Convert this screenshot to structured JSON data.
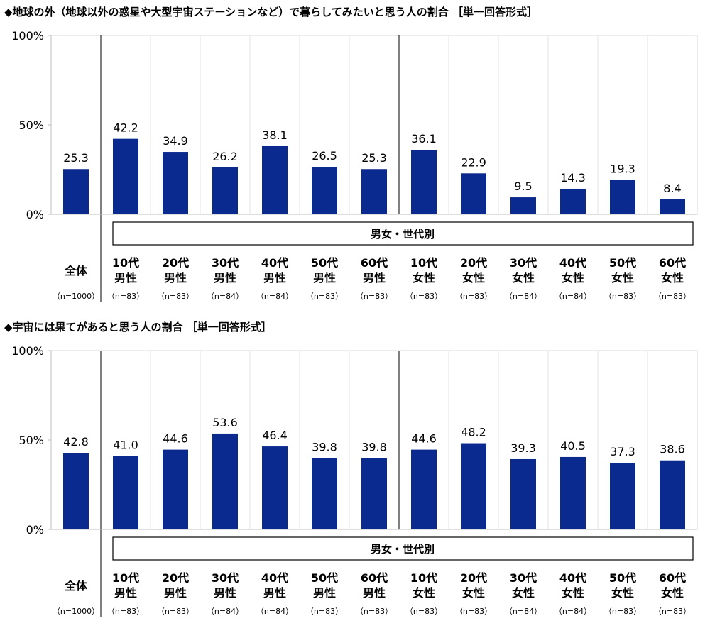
{
  "chart_data": [
    {
      "type": "bar",
      "title": "◆地球の外（地球以外の惑星や大型宇宙ステーションなど）で暮らしてみたいと思う人の割合 ［単一回答形式］",
      "group_label": "男女・世代別",
      "categories": [
        {
          "line1": "全体",
          "line2": "",
          "n": "（n=1000）"
        },
        {
          "line1": "10代",
          "line2": "男性",
          "n": "（n=83）"
        },
        {
          "line1": "20代",
          "line2": "男性",
          "n": "（n=83）"
        },
        {
          "line1": "30代",
          "line2": "男性",
          "n": "（n=84）"
        },
        {
          "line1": "40代",
          "line2": "男性",
          "n": "（n=84）"
        },
        {
          "line1": "50代",
          "line2": "男性",
          "n": "（n=83）"
        },
        {
          "line1": "60代",
          "line2": "男性",
          "n": "（n=83）"
        },
        {
          "line1": "10代",
          "line2": "女性",
          "n": "（n=83）"
        },
        {
          "line1": "20代",
          "line2": "女性",
          "n": "（n=83）"
        },
        {
          "line1": "30代",
          "line2": "女性",
          "n": "（n=84）"
        },
        {
          "line1": "40代",
          "line2": "女性",
          "n": "（n=84）"
        },
        {
          "line1": "50代",
          "line2": "女性",
          "n": "（n=83）"
        },
        {
          "line1": "60代",
          "line2": "女性",
          "n": "（n=83）"
        }
      ],
      "values": [
        25.3,
        42.2,
        34.9,
        26.2,
        38.1,
        26.5,
        25.3,
        36.1,
        22.9,
        9.5,
        14.3,
        19.3,
        8.4
      ],
      "value_labels": [
        "25.3",
        "42.2",
        "34.9",
        "26.2",
        "38.1",
        "26.5",
        "25.3",
        "36.1",
        "22.9",
        "9.5",
        "14.3",
        "19.3",
        "8.4"
      ],
      "yticks": [
        "0%",
        "50%",
        "100%"
      ],
      "ylim": [
        0,
        100
      ],
      "bar_color": "#0b2a8f"
    },
    {
      "type": "bar",
      "title": "◆宇宙には果てがあると思う人の割合 ［単一回答形式］",
      "group_label": "男女・世代別",
      "categories": [
        {
          "line1": "全体",
          "line2": "",
          "n": "（n=1000）"
        },
        {
          "line1": "10代",
          "line2": "男性",
          "n": "（n=83）"
        },
        {
          "line1": "20代",
          "line2": "男性",
          "n": "（n=83）"
        },
        {
          "line1": "30代",
          "line2": "男性",
          "n": "（n=84）"
        },
        {
          "line1": "40代",
          "line2": "男性",
          "n": "（n=84）"
        },
        {
          "line1": "50代",
          "line2": "男性",
          "n": "（n=83）"
        },
        {
          "line1": "60代",
          "line2": "男性",
          "n": "（n=83）"
        },
        {
          "line1": "10代",
          "line2": "女性",
          "n": "（n=83）"
        },
        {
          "line1": "20代",
          "line2": "女性",
          "n": "（n=83）"
        },
        {
          "line1": "30代",
          "line2": "女性",
          "n": "（n=84）"
        },
        {
          "line1": "40代",
          "line2": "女性",
          "n": "（n=84）"
        },
        {
          "line1": "50代",
          "line2": "女性",
          "n": "（n=83）"
        },
        {
          "line1": "60代",
          "line2": "女性",
          "n": "（n=83）"
        }
      ],
      "values": [
        42.8,
        41.0,
        44.6,
        53.6,
        46.4,
        39.8,
        39.8,
        44.6,
        48.2,
        39.3,
        40.5,
        37.3,
        38.6
      ],
      "value_labels": [
        "42.8",
        "41.0",
        "44.6",
        "53.6",
        "46.4",
        "39.8",
        "39.8",
        "44.6",
        "48.2",
        "39.3",
        "40.5",
        "37.3",
        "38.6"
      ],
      "yticks": [
        "0%",
        "50%",
        "100%"
      ],
      "ylim": [
        0,
        100
      ],
      "bar_color": "#0b2a8f"
    }
  ]
}
